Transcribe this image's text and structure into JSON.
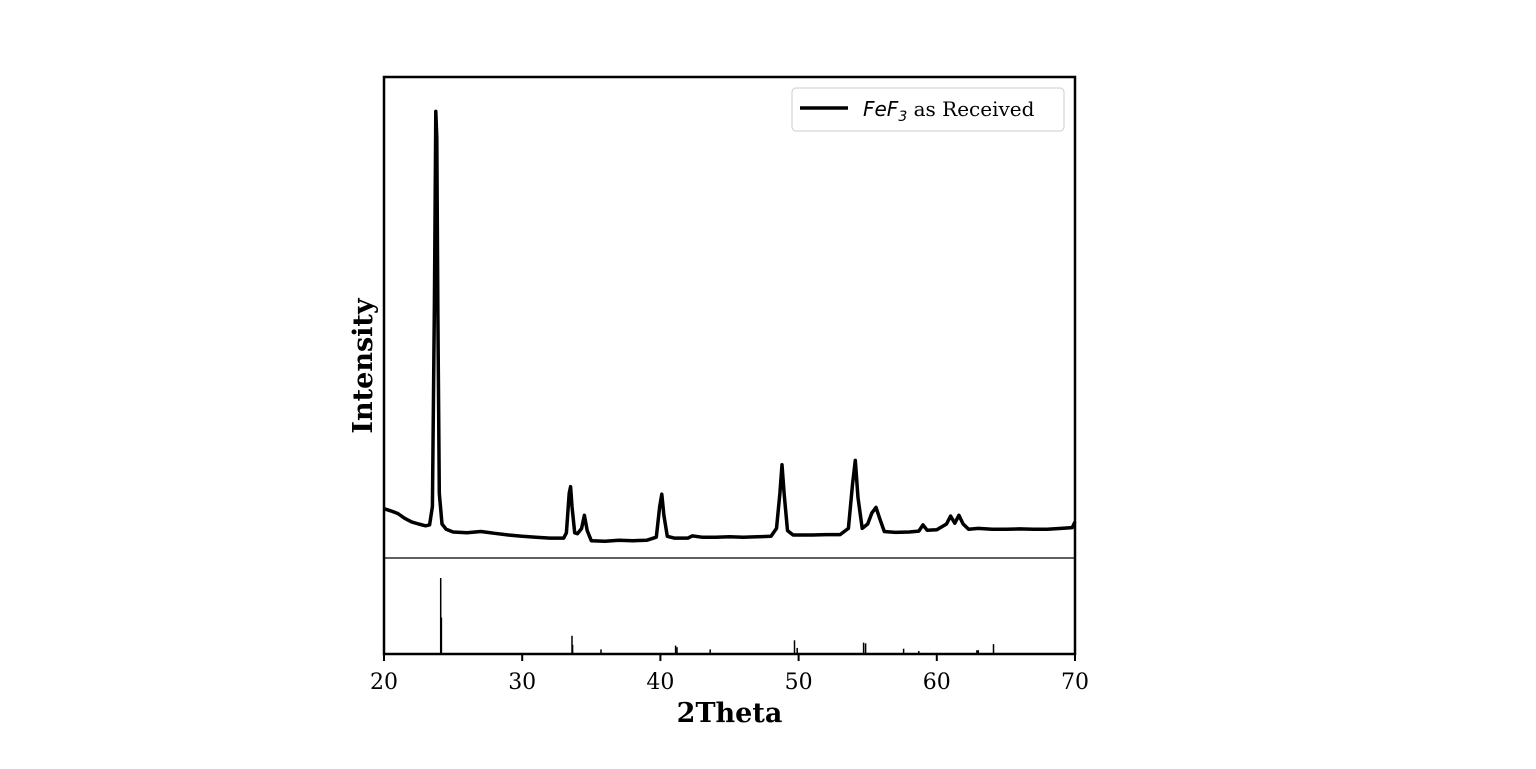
{
  "chart_data": {
    "type": "line",
    "xlabel": "2Theta",
    "ylabel": "Intensity",
    "xlim": [
      20,
      70
    ],
    "xticks": [
      20,
      30,
      40,
      50,
      60,
      70
    ],
    "xtick_labels": [
      "20",
      "30",
      "40",
      "50",
      "60",
      "70"
    ],
    "grid": false,
    "legend_position": "top-right",
    "legend": {
      "label_italic_prefix": "FeF",
      "label_subscript": "3",
      "label_suffix": " as Received"
    },
    "colors": {
      "series": "#000000",
      "axes": "#000000"
    },
    "panels": [
      {
        "name": "top",
        "ylim": [
          0,
          1.0
        ],
        "series": [
          {
            "legend_ref": "legend",
            "x": [
              20.0,
              20.5,
              21.0,
              21.5,
              22.0,
              22.5,
              23.0,
              23.3,
              23.5,
              23.65,
              23.75,
              23.82,
              23.9,
              24.0,
              24.2,
              24.5,
              25.0,
              26.0,
              27.0,
              27.5,
              28.0,
              29.0,
              30.0,
              31.0,
              32.0,
              33.0,
              33.2,
              33.4,
              33.5,
              33.6,
              33.8,
              34.0,
              34.3,
              34.5,
              34.7,
              35.0,
              36.0,
              37.0,
              38.0,
              39.0,
              39.7,
              39.95,
              40.1,
              40.25,
              40.5,
              41.0,
              42.0,
              42.3,
              43.0,
              44.0,
              45.0,
              46.0,
              47.0,
              48.0,
              48.4,
              48.65,
              48.8,
              48.95,
              49.2,
              49.6,
              50.0,
              51.0,
              52.0,
              53.0,
              53.6,
              53.9,
              54.1,
              54.3,
              54.6,
              55.0,
              55.3,
              55.6,
              55.9,
              56.2,
              57.0,
              58.0,
              58.7,
              59.0,
              59.3,
              60.0,
              60.7,
              61.0,
              61.3,
              61.6,
              61.9,
              62.3,
              63.0,
              64.0,
              65.0,
              66.0,
              67.0,
              68.0,
              69.0,
              69.8,
              70.0
            ],
            "y": [
              0.085,
              0.08,
              0.074,
              0.063,
              0.055,
              0.05,
              0.046,
              0.048,
              0.09,
              0.55,
              0.99,
              0.93,
              0.52,
              0.12,
              0.05,
              0.038,
              0.032,
              0.03,
              0.033,
              0.031,
              0.029,
              0.025,
              0.022,
              0.02,
              0.018,
              0.018,
              0.03,
              0.12,
              0.135,
              0.09,
              0.03,
              0.028,
              0.04,
              0.07,
              0.035,
              0.012,
              0.011,
              0.013,
              0.012,
              0.013,
              0.02,
              0.09,
              0.118,
              0.07,
              0.022,
              0.018,
              0.018,
              0.023,
              0.02,
              0.02,
              0.021,
              0.02,
              0.021,
              0.022,
              0.04,
              0.12,
              0.185,
              0.12,
              0.035,
              0.025,
              0.025,
              0.025,
              0.026,
              0.026,
              0.04,
              0.14,
              0.195,
              0.11,
              0.04,
              0.05,
              0.075,
              0.088,
              0.06,
              0.033,
              0.031,
              0.032,
              0.034,
              0.048,
              0.036,
              0.037,
              0.05,
              0.068,
              0.052,
              0.07,
              0.05,
              0.038,
              0.04,
              0.038,
              0.038,
              0.039,
              0.038,
              0.038,
              0.04,
              0.042,
              0.055
            ]
          }
        ]
      },
      {
        "name": "bottom",
        "type": "stem",
        "ylim": [
          0,
          1.0
        ],
        "series": [
          {
            "x": [
              24.1,
              24.15,
              33.6,
              33.65,
              35.7,
              41.1,
              41.2,
              43.6,
              49.7,
              49.9,
              54.7,
              54.85,
              57.6,
              58.7,
              62.9,
              63.0,
              64.1
            ],
            "values": [
              1.0,
              0.48,
              0.24,
              0.12,
              0.06,
              0.11,
              0.09,
              0.06,
              0.18,
              0.08,
              0.15,
              0.14,
              0.07,
              0.04,
              0.05,
              0.05,
              0.13
            ]
          }
        ]
      }
    ]
  }
}
